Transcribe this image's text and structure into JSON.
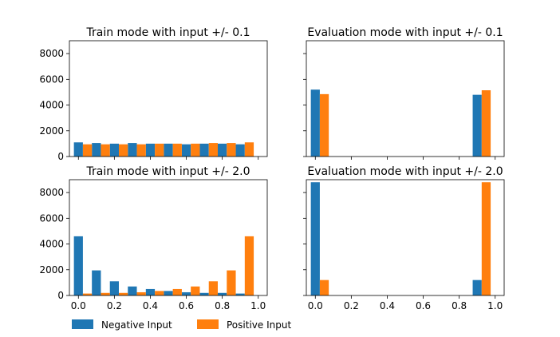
{
  "chart_data": [
    {
      "type": "bar",
      "title": "Train mode with input +/- 0.1",
      "xlim": [
        -0.05,
        1.05
      ],
      "ylim": [
        0,
        9000
      ],
      "yticks": [
        0,
        2000,
        4000,
        6000,
        8000
      ],
      "xticks": [
        0.0,
        0.2,
        0.4,
        0.6,
        0.8,
        1.0
      ],
      "bin_centers": [
        0.025,
        0.125,
        0.225,
        0.325,
        0.425,
        0.525,
        0.625,
        0.725,
        0.825,
        0.925
      ],
      "series": [
        {
          "name": "Negative Input",
          "values": [
            1100,
            1050,
            1000,
            1050,
            1000,
            1000,
            950,
            1000,
            1000,
            950
          ]
        },
        {
          "name": "Positive Input",
          "values": [
            950,
            950,
            950,
            950,
            1000,
            1000,
            1000,
            1050,
            1050,
            1100
          ]
        }
      ]
    },
    {
      "type": "bar",
      "title": "Evaluation mode with input +/- 0.1",
      "xlim": [
        -0.05,
        1.05
      ],
      "ylim": [
        0,
        9000
      ],
      "yticks": [
        0,
        2000,
        4000,
        6000,
        8000
      ],
      "xticks": [
        0.0,
        0.2,
        0.4,
        0.6,
        0.8,
        1.0
      ],
      "bin_centers": [
        0.025,
        0.125,
        0.225,
        0.325,
        0.425,
        0.525,
        0.625,
        0.725,
        0.825,
        0.925
      ],
      "series": [
        {
          "name": "Negative Input",
          "values": [
            5200,
            0,
            0,
            0,
            0,
            0,
            0,
            0,
            0,
            4800
          ]
        },
        {
          "name": "Positive Input",
          "values": [
            4850,
            0,
            0,
            0,
            0,
            0,
            0,
            0,
            0,
            5150
          ]
        }
      ]
    },
    {
      "type": "bar",
      "title": "Train mode with input +/- 2.0",
      "xlim": [
        -0.05,
        1.05
      ],
      "ylim": [
        0,
        9000
      ],
      "yticks": [
        0,
        2000,
        4000,
        6000,
        8000
      ],
      "xticks": [
        0.0,
        0.2,
        0.4,
        0.6,
        0.8,
        1.0
      ],
      "bin_centers": [
        0.025,
        0.125,
        0.225,
        0.325,
        0.425,
        0.525,
        0.625,
        0.725,
        0.825,
        0.925
      ],
      "series": [
        {
          "name": "Negative Input",
          "values": [
            4600,
            1950,
            1100,
            700,
            500,
            350,
            250,
            200,
            200,
            150
          ]
        },
        {
          "name": "Positive Input",
          "values": [
            150,
            200,
            200,
            250,
            350,
            500,
            700,
            1100,
            1950,
            4600
          ]
        }
      ]
    },
    {
      "type": "bar",
      "title": "Evaluation mode with input +/- 2.0",
      "xlim": [
        -0.05,
        1.05
      ],
      "ylim": [
        0,
        9000
      ],
      "yticks": [
        0,
        2000,
        4000,
        6000,
        8000
      ],
      "xticks": [
        0.0,
        0.2,
        0.4,
        0.6,
        0.8,
        1.0
      ],
      "bin_centers": [
        0.025,
        0.125,
        0.225,
        0.325,
        0.425,
        0.525,
        0.625,
        0.725,
        0.825,
        0.925
      ],
      "series": [
        {
          "name": "Negative Input",
          "values": [
            8800,
            0,
            0,
            0,
            0,
            0,
            0,
            0,
            0,
            1200
          ]
        },
        {
          "name": "Positive Input",
          "values": [
            1200,
            0,
            0,
            0,
            0,
            0,
            0,
            0,
            0,
            8800
          ]
        }
      ]
    }
  ],
  "legend": {
    "placement": "bottom-left",
    "items": [
      {
        "label": "Negative Input",
        "color": "#1f77b4"
      },
      {
        "label": "Positive Input",
        "color": "#ff7f0e"
      }
    ]
  },
  "colors": {
    "negative": "#1f77b4",
    "positive": "#ff7f0e"
  }
}
